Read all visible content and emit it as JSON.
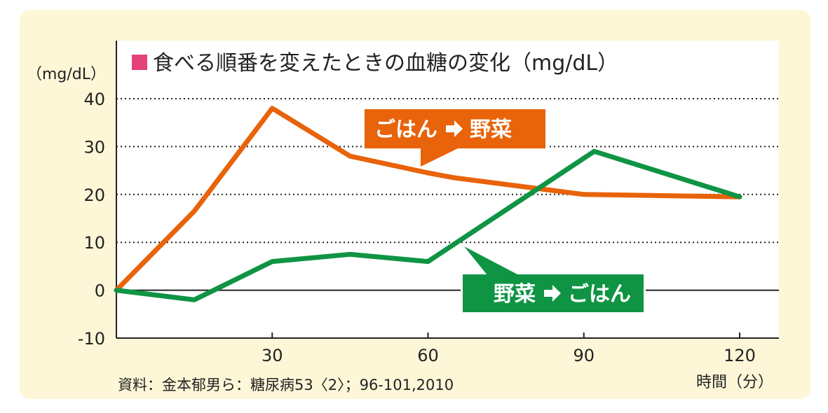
{
  "chart_data": {
    "type": "line",
    "title": "食べる順番を変えたときの血糖の変化（mg/dL）",
    "ylabel": "（mg/dL）",
    "xlabel": "時間（分）",
    "ylim": [
      -10,
      40
    ],
    "xlim": [
      0,
      120
    ],
    "yticks": [
      "40",
      "30",
      "20",
      "10",
      "0",
      "-10"
    ],
    "xticks": [
      "30",
      "60",
      "90",
      "120"
    ],
    "grid": "horizontal dotted",
    "source": "資料：金本郁男ら：糖尿病53〈2〉；96-101,2010",
    "series": [
      {
        "name": "ごはん ➡ 野菜",
        "label_left": "ごはん",
        "label_right": "野菜",
        "color": "#e8630a",
        "x": [
          0,
          15,
          30,
          45,
          60,
          65,
          90,
          120
        ],
        "y": [
          0,
          16.5,
          38,
          28,
          24.5,
          23.5,
          20,
          19.5
        ]
      },
      {
        "name": "野菜 ➡ ごはん",
        "label_left": "野菜",
        "label_right": "ごはん",
        "color": "#0f9444",
        "x": [
          0,
          15,
          30,
          45,
          60,
          92,
          120
        ],
        "y": [
          0,
          -2,
          6,
          7.5,
          6,
          29,
          19.5
        ]
      }
    ]
  },
  "colors": {
    "background": "#fdf7d8",
    "title_marker": "#e5427a",
    "gridline": "#222222"
  }
}
